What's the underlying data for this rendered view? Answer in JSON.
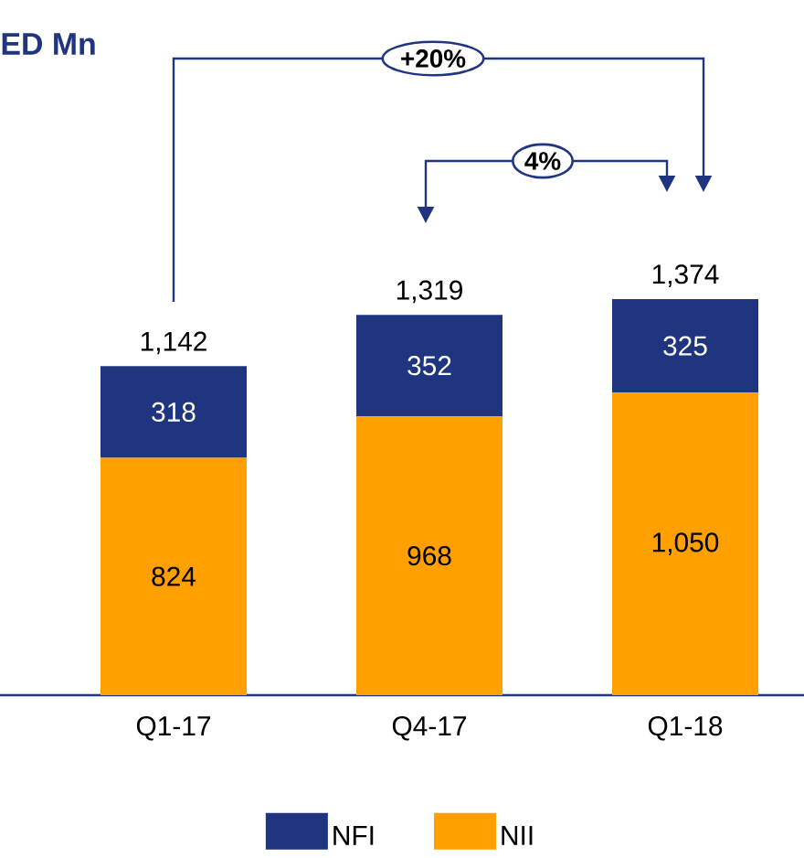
{
  "chart_data": {
    "type": "bar",
    "stacked": true,
    "title": "ED Mn",
    "categories": [
      "Q1-17",
      "Q4-17",
      "Q1-18"
    ],
    "series": [
      {
        "name": "NII",
        "color": "#ffa000",
        "values": [
          824,
          968,
          1050
        ],
        "value_labels": [
          "824",
          "968",
          "1,050"
        ]
      },
      {
        "name": "NFI",
        "color": "#1f3580",
        "values": [
          318,
          352,
          325
        ],
        "value_labels": [
          "318",
          "352",
          "325"
        ]
      }
    ],
    "totals": [
      "1,142",
      "1,319",
      "1,374"
    ],
    "annotations": [
      "+20%",
      "4%"
    ],
    "legend": "bottom"
  }
}
